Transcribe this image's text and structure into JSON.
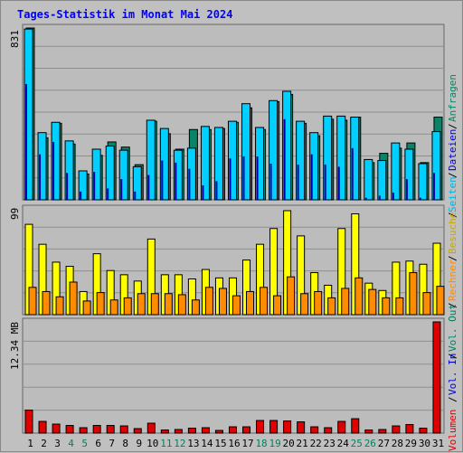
{
  "title": "Tages-Statistik im Monat Mai 2024",
  "colors": {
    "background": "#c0c0c0",
    "plot_background": "#bcbcbc",
    "grid": "#909090",
    "anfragen": "#0a8466",
    "seiten": "#0000aa",
    "dateien": "#00cfff",
    "besuche": "#ffff00",
    "rechner": "#ff8c00",
    "volumen": "#e00000",
    "weekday_label": "#000000",
    "weekend_label": "#008060"
  },
  "legend": {
    "anfragen": "Anfragen",
    "dateien": "Dateien",
    "seiten": "Seiten",
    "besuche": "Besuche",
    "rechner": "Rechner",
    "vol_out": "Vol. Out",
    "vol_in": "Vol. In",
    "volumen": "Volumen",
    "sep": "/"
  },
  "chart_data": [
    {
      "type": "bar",
      "panel": "hits",
      "ylabel": "831",
      "ylim": [
        0,
        831
      ],
      "categories": [
        "1",
        "2",
        "3",
        "4",
        "5",
        "6",
        "7",
        "8",
        "9",
        "10",
        "11",
        "12",
        "13",
        "14",
        "15",
        "16",
        "17",
        "18",
        "19",
        "20",
        "21",
        "22",
        "23",
        "24",
        "25",
        "26",
        "27",
        "28",
        "29",
        "30",
        "31"
      ],
      "series": [
        {
          "name": "Anfragen",
          "values": [
            831,
            300,
            370,
            270,
            125,
            215,
            280,
            255,
            170,
            380,
            320,
            245,
            340,
            340,
            345,
            375,
            445,
            340,
            475,
            510,
            370,
            310,
            390,
            385,
            400,
            180,
            225,
            250,
            275,
            180,
            400
          ]
        },
        {
          "name": "Dateien",
          "values": [
            826,
            325,
            375,
            285,
            140,
            245,
            260,
            240,
            160,
            385,
            345,
            240,
            250,
            355,
            350,
            380,
            465,
            350,
            480,
            525,
            380,
            325,
            405,
            405,
            400,
            195,
            190,
            275,
            245,
            175,
            330
          ]
        },
        {
          "name": "Seiten",
          "values": [
            560,
            220,
            280,
            130,
            40,
            135,
            55,
            100,
            40,
            120,
            190,
            180,
            150,
            70,
            90,
            200,
            210,
            210,
            175,
            390,
            170,
            220,
            170,
            160,
            250,
            10,
            20,
            35,
            100,
            10,
            130
          ]
        }
      ]
    },
    {
      "type": "bar",
      "panel": "visits",
      "ylabel": "99",
      "ylim": [
        0,
        99
      ],
      "categories": [
        "1",
        "2",
        "3",
        "4",
        "5",
        "6",
        "7",
        "8",
        "9",
        "10",
        "11",
        "12",
        "13",
        "14",
        "15",
        "16",
        "17",
        "18",
        "19",
        "20",
        "21",
        "22",
        "23",
        "24",
        "25",
        "26",
        "27",
        "28",
        "29",
        "30",
        "31"
      ],
      "series": [
        {
          "name": "Besuche",
          "values": [
            86,
            67,
            50,
            46,
            22,
            58,
            42,
            38,
            32,
            72,
            38,
            38,
            34,
            43,
            35,
            35,
            52,
            67,
            82,
            99,
            75,
            40,
            28,
            82,
            96,
            30,
            23,
            50,
            51,
            48,
            68
          ]
        },
        {
          "name": "Rechner",
          "values": [
            26,
            22,
            17,
            31,
            13,
            21,
            14,
            16,
            20,
            20,
            20,
            19,
            14,
            26,
            25,
            18,
            22,
            26,
            18,
            36,
            20,
            22,
            16,
            25,
            35,
            24,
            16,
            16,
            40,
            21,
            27
          ]
        }
      ]
    },
    {
      "type": "bar",
      "panel": "volume",
      "ylabel": "12.34 MB",
      "ylim": [
        0,
        12.34
      ],
      "categories": [
        "1",
        "2",
        "3",
        "4",
        "5",
        "6",
        "7",
        "8",
        "9",
        "10",
        "11",
        "12",
        "13",
        "14",
        "15",
        "16",
        "17",
        "18",
        "19",
        "20",
        "21",
        "22",
        "23",
        "24",
        "25",
        "26",
        "27",
        "28",
        "29",
        "30",
        "31"
      ],
      "series": [
        {
          "name": "Volumen",
          "values": [
            2.55,
            1.3,
            1.0,
            0.85,
            0.6,
            0.85,
            0.85,
            0.8,
            0.5,
            1.1,
            0.35,
            0.4,
            0.55,
            0.6,
            0.3,
            0.7,
            0.7,
            1.4,
            1.4,
            1.35,
            1.25,
            0.7,
            0.6,
            1.3,
            1.6,
            0.35,
            0.4,
            0.8,
            0.95,
            0.55,
            12.34
          ]
        }
      ]
    }
  ],
  "weekend_days": [
    "4",
    "5",
    "11",
    "12",
    "18",
    "19",
    "25",
    "26"
  ]
}
